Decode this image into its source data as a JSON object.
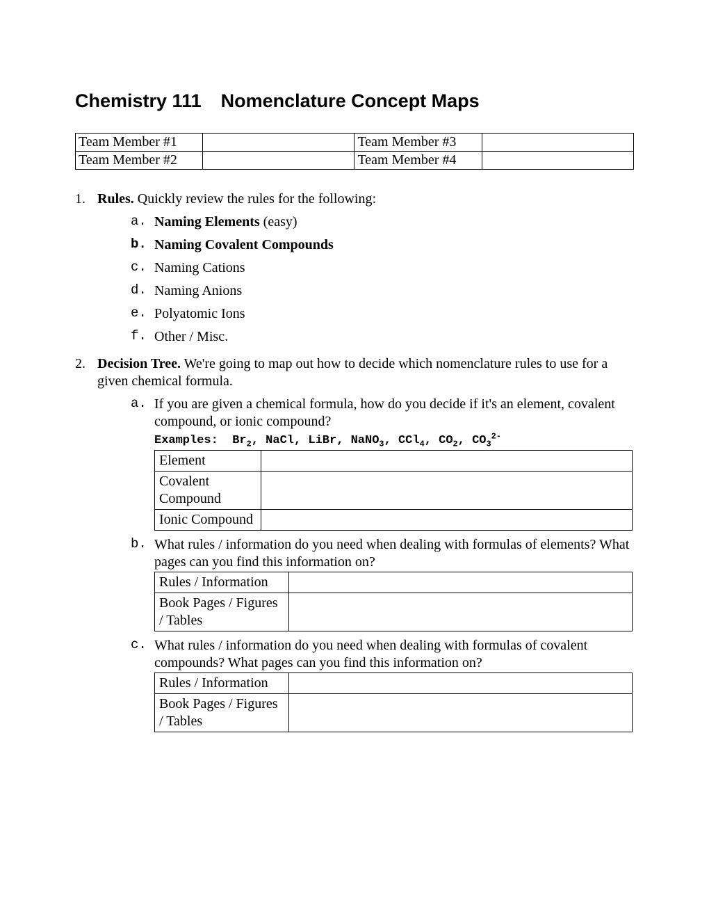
{
  "title_part1": "Chemistry 111",
  "title_part2": "Nomenclature Concept Maps",
  "team": {
    "r1c1": "Team Member #1",
    "r1c3": "Team Member #3",
    "r2c1": "Team Member #2",
    "r2c3": "Team Member #4"
  },
  "items": {
    "item1": {
      "marker": "1.",
      "lead_bold": "Rules.",
      "lead_rest": "  Quickly review the rules for the following:",
      "subs": {
        "a": {
          "marker": "a.",
          "bold": "Naming Elements",
          "rest": " (easy)"
        },
        "b": {
          "marker": "b.",
          "bold": "Naming Covalent Compounds",
          "rest": ""
        },
        "c": {
          "marker": "c.",
          "text": "Naming Cations"
        },
        "d": {
          "marker": "d.",
          "text": "Naming Anions"
        },
        "e": {
          "marker": "e.",
          "text": "Polyatomic Ions"
        },
        "f": {
          "marker": "f.",
          "text": "Other / Misc."
        }
      }
    },
    "item2": {
      "marker": "2.",
      "lead_bold": "Decision Tree.",
      "lead_rest": "  We're going to map out how to decide which nomenclature rules to use for a given chemical formula.",
      "a": {
        "marker": "a.",
        "text": "If you are given a chemical formula, how do you decide if it's an element, covalent compound, or ionic compound?",
        "examples_label": "Examples:",
        "table": {
          "r1": "Element",
          "r2": "Covalent Compound",
          "r3": "Ionic Compound"
        }
      },
      "b": {
        "marker": "b.",
        "text": "What rules / information do you need when dealing with formulas of elements?  What pages can you find this information on?",
        "table": {
          "r1": "Rules / Information",
          "r2": "Book Pages / Figures / Tables"
        }
      },
      "c": {
        "marker": "c.",
        "text": "What rules / information do you need when dealing with formulas of covalent compounds?   What pages can you find this information on?",
        "table": {
          "r1": "Rules / Information",
          "r2": "Book Pages / Figures / Tables"
        }
      }
    }
  }
}
